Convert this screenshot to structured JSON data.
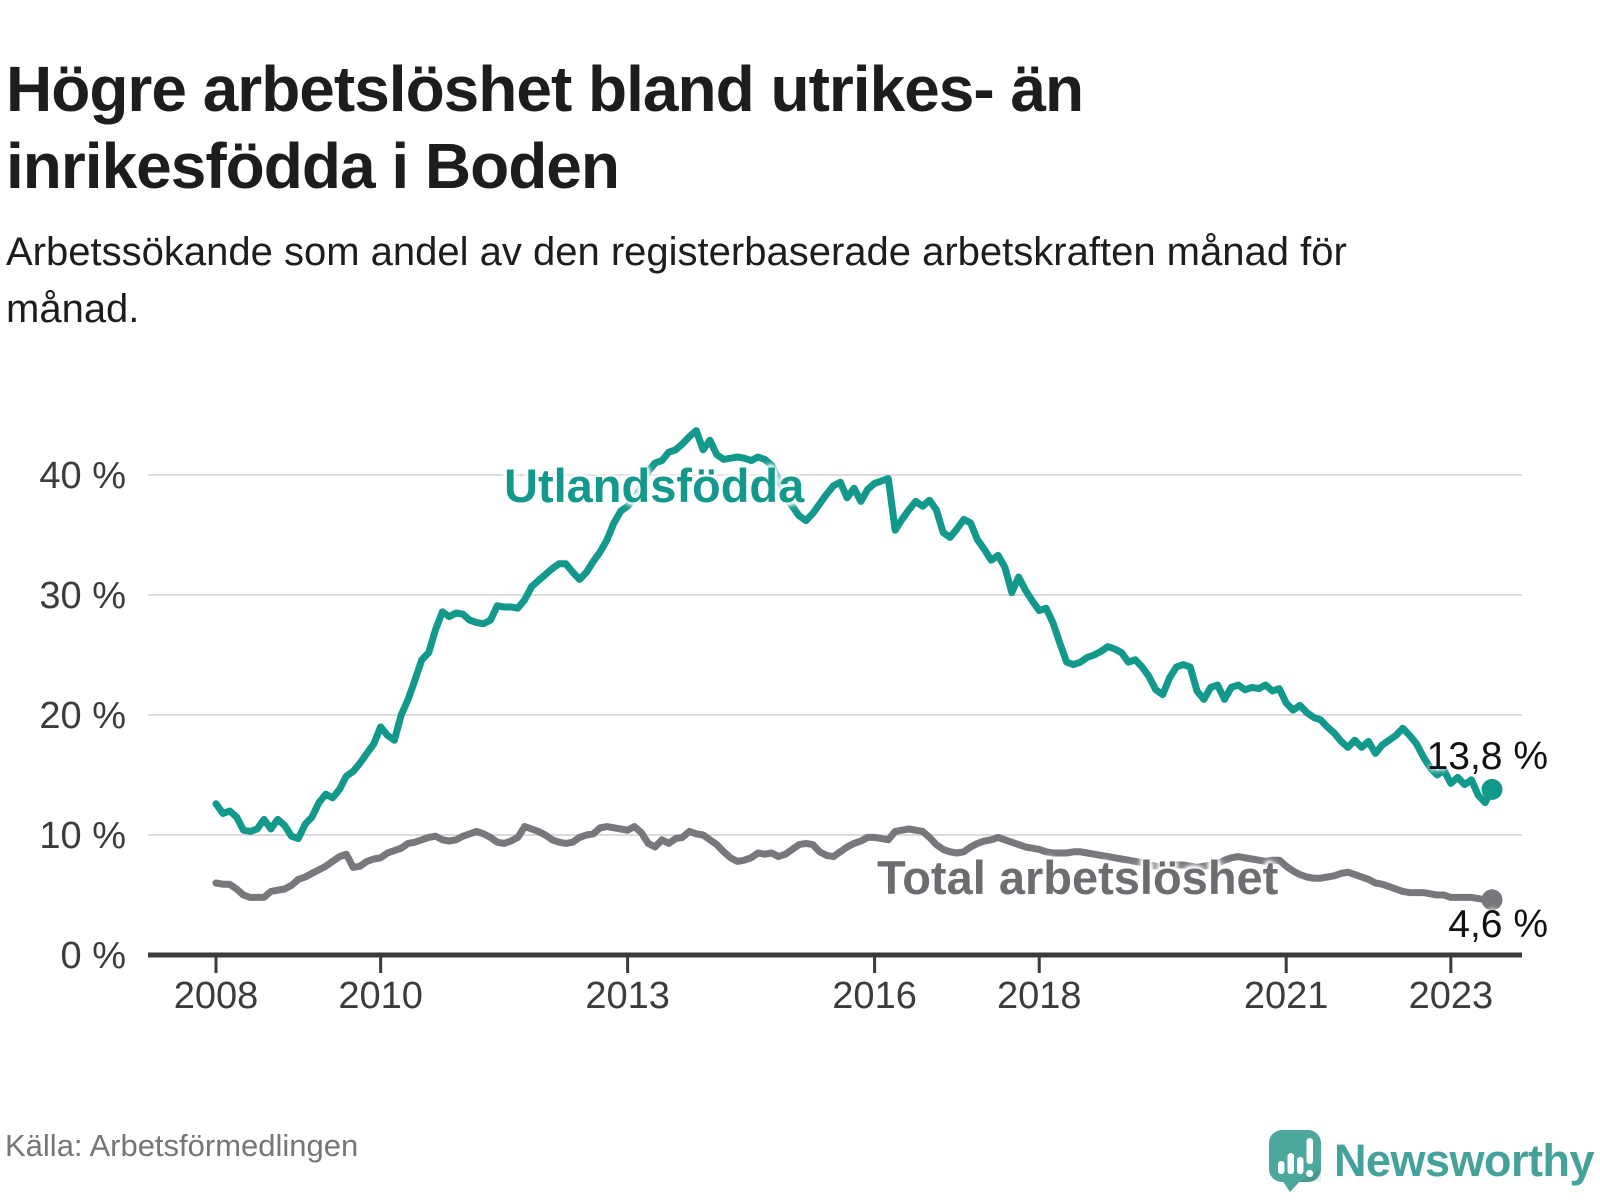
{
  "header": {
    "title": "Högre arbetslöshet bland utrikes- än inrikesfödda i Boden",
    "subtitle": "Arbetssökande som andel av den registerbaserade arbetskraften månad för månad."
  },
  "footer": {
    "source": "Källa: Arbetsförmedlingen",
    "brand": "Newsworthy"
  },
  "colors": {
    "foreign_line": "#12998c",
    "total_line": "#77777c",
    "grid": "#dbdbdb",
    "axis": "#3a3a3c",
    "tick_text": "#3c3c3c",
    "value_text": "#111111",
    "brand_teal": "#4ca79d"
  },
  "chart_data": {
    "type": "line",
    "unit": "%",
    "frequency": "monthly",
    "x_start": "2008-01",
    "x_end": "2023-07",
    "grid": true,
    "ylim": [
      0,
      44
    ],
    "yticks": [
      {
        "value": 0,
        "label": "0 %"
      },
      {
        "value": 10,
        "label": "10 %"
      },
      {
        "value": 20,
        "label": "20 %"
      },
      {
        "value": 30,
        "label": "30 %"
      },
      {
        "value": 40,
        "label": "40 %"
      }
    ],
    "xticks": [
      {
        "month_index": 0,
        "label": "2008"
      },
      {
        "month_index": 24,
        "label": "2010"
      },
      {
        "month_index": 60,
        "label": "2013"
      },
      {
        "month_index": 96,
        "label": "2016"
      },
      {
        "month_index": 120,
        "label": "2018"
      },
      {
        "month_index": 156,
        "label": "2021"
      },
      {
        "month_index": 180,
        "label": "2023"
      }
    ],
    "series": [
      {
        "name": "Utlandsfödda",
        "color": "#12998c",
        "end_label": "13,8 %",
        "last_value": 13.8,
        "values": [
          12.6,
          11.8,
          12.0,
          11.5,
          10.4,
          10.3,
          10.5,
          11.3,
          10.5,
          11.3,
          10.8,
          9.9,
          9.7,
          10.9,
          11.5,
          12.7,
          13.4,
          13.1,
          13.8,
          14.9,
          15.3,
          16.0,
          16.8,
          17.6,
          19.0,
          18.3,
          17.9,
          20.0,
          21.3,
          22.9,
          24.6,
          25.2,
          27.1,
          28.6,
          28.2,
          28.5,
          28.4,
          27.9,
          27.7,
          27.6,
          27.9,
          29.1,
          29.0,
          29.0,
          28.9,
          29.6,
          30.7,
          31.2,
          31.7,
          32.2,
          32.6,
          32.6,
          31.9,
          31.3,
          31.9,
          32.8,
          33.6,
          34.6,
          36.0,
          37.0,
          37.4,
          38.1,
          39.0,
          40.3,
          41.0,
          41.2,
          41.9,
          42.1,
          42.6,
          43.2,
          43.7,
          42.1,
          42.9,
          41.7,
          41.3,
          41.4,
          41.5,
          41.4,
          41.2,
          41.5,
          41.3,
          40.8,
          39.6,
          38.2,
          37.4,
          36.6,
          36.2,
          36.8,
          37.6,
          38.4,
          39.1,
          39.4,
          38.1,
          38.9,
          37.8,
          38.8,
          39.3,
          39.5,
          39.7,
          35.4,
          36.3,
          37.1,
          37.8,
          37.4,
          37.9,
          37.1,
          35.2,
          34.8,
          35.5,
          36.3,
          36.0,
          34.6,
          33.8,
          32.9,
          33.3,
          32.3,
          30.2,
          31.5,
          30.4,
          29.5,
          28.7,
          28.9,
          27.7,
          26.0,
          24.4,
          24.2,
          24.4,
          24.8,
          25.0,
          25.3,
          25.7,
          25.5,
          25.2,
          24.4,
          24.6,
          24.0,
          23.2,
          22.1,
          21.7,
          23.1,
          24.0,
          24.2,
          24.0,
          22.0,
          21.3,
          22.3,
          22.5,
          21.3,
          22.3,
          22.5,
          22.1,
          22.3,
          22.2,
          22.5,
          22.0,
          22.2,
          21.0,
          20.4,
          20.8,
          20.2,
          19.8,
          19.6,
          19.0,
          18.5,
          17.8,
          17.3,
          17.9,
          17.3,
          17.8,
          16.8,
          17.5,
          17.9,
          18.3,
          18.9,
          18.3,
          17.6,
          16.5,
          15.6,
          15.0,
          15.4,
          14.3,
          14.8,
          14.2,
          14.6,
          13.3,
          12.7,
          13.8
        ]
      },
      {
        "name": "Total arbetslöshet",
        "color": "#77777c",
        "end_label": "4,6 %",
        "last_value": 4.6,
        "values": [
          6.0,
          5.9,
          5.9,
          5.5,
          5.0,
          4.8,
          4.8,
          4.8,
          5.3,
          5.4,
          5.5,
          5.8,
          6.3,
          6.5,
          6.8,
          7.1,
          7.4,
          7.8,
          8.2,
          8.4,
          7.3,
          7.4,
          7.8,
          8.0,
          8.1,
          8.5,
          8.7,
          8.9,
          9.3,
          9.4,
          9.6,
          9.8,
          9.9,
          9.6,
          9.5,
          9.6,
          9.9,
          10.1,
          10.3,
          10.1,
          9.8,
          9.4,
          9.3,
          9.5,
          9.8,
          10.7,
          10.5,
          10.3,
          10.0,
          9.6,
          9.4,
          9.3,
          9.4,
          9.8,
          10.0,
          10.1,
          10.6,
          10.7,
          10.6,
          10.5,
          10.4,
          10.7,
          10.2,
          9.3,
          9.0,
          9.6,
          9.3,
          9.7,
          9.8,
          10.3,
          10.1,
          10.0,
          9.6,
          9.2,
          8.6,
          8.1,
          7.8,
          7.9,
          8.1,
          8.5,
          8.4,
          8.5,
          8.2,
          8.4,
          8.8,
          9.2,
          9.3,
          9.2,
          8.6,
          8.3,
          8.2,
          8.6,
          9.0,
          9.3,
          9.5,
          9.8,
          9.8,
          9.7,
          9.6,
          10.3,
          10.4,
          10.5,
          10.4,
          10.3,
          9.8,
          9.2,
          8.8,
          8.6,
          8.5,
          8.6,
          9.0,
          9.3,
          9.5,
          9.6,
          9.8,
          9.6,
          9.4,
          9.2,
          9.0,
          8.9,
          8.8,
          8.6,
          8.5,
          8.5,
          8.5,
          8.6,
          8.6,
          8.5,
          8.4,
          8.3,
          8.2,
          8.1,
          8.0,
          7.9,
          7.8,
          7.7,
          7.5,
          7.4,
          7.3,
          7.4,
          7.5,
          7.5,
          7.4,
          7.3,
          7.4,
          7.5,
          7.6,
          7.9,
          8.1,
          8.2,
          8.1,
          8.0,
          7.9,
          7.8,
          7.9,
          7.9,
          7.4,
          7.0,
          6.7,
          6.5,
          6.4,
          6.4,
          6.5,
          6.6,
          6.8,
          6.9,
          6.7,
          6.5,
          6.3,
          6.0,
          5.9,
          5.7,
          5.5,
          5.3,
          5.2,
          5.2,
          5.2,
          5.1,
          5.0,
          5.0,
          4.8,
          4.8,
          4.8,
          4.8,
          4.7,
          4.6,
          4.6
        ]
      }
    ]
  }
}
